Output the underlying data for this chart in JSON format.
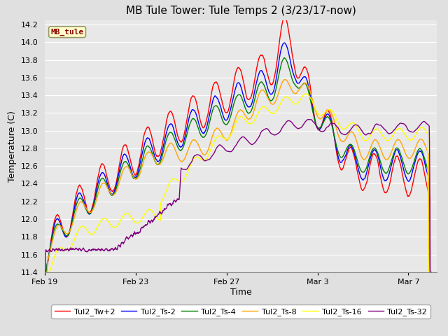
{
  "title": "MB Tule Tower: Tule Temps 2 (3/23/17-now)",
  "ylabel": "Temperature (C)",
  "xlabel": "Time",
  "ylim": [
    11.4,
    14.25
  ],
  "yticks": [
    11.4,
    11.6,
    11.8,
    12.0,
    12.2,
    12.4,
    12.6,
    12.8,
    13.0,
    13.2,
    13.4,
    13.6,
    13.8,
    14.0,
    14.2
  ],
  "xtick_labels": [
    "Feb 19",
    "Feb 23",
    "Feb 27",
    "Mar 3",
    "Mar 7"
  ],
  "bg_color": "#e0e0e0",
  "plot_bg_color": "#e8e8e8",
  "grid_color": "white",
  "series": [
    {
      "label": "Tul2_Tw+2",
      "color": "red",
      "lw": 1.0
    },
    {
      "label": "Tul2_Ts-2",
      "color": "blue",
      "lw": 1.0
    },
    {
      "label": "Tul2_Ts-4",
      "color": "green",
      "lw": 1.0
    },
    {
      "label": "Tul2_Ts-8",
      "color": "orange",
      "lw": 1.0
    },
    {
      "label": "Tul2_Ts-16",
      "color": "yellow",
      "lw": 1.0
    },
    {
      "label": "Tul2_Ts-32",
      "color": "purple",
      "lw": 1.0
    }
  ],
  "legend_box_color": "#ffffcc",
  "legend_box_edge": "#999966",
  "mb_tule_label": "MB_tule",
  "title_fontsize": 11,
  "axis_fontsize": 9,
  "tick_fontsize": 8,
  "legend_fontsize": 8
}
